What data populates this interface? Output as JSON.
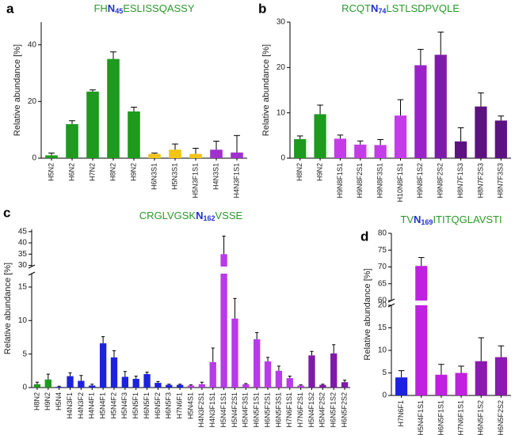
{
  "chart_data": [
    {
      "type": "bar",
      "panel": "a",
      "title": [
        "FH",
        "N",
        "45",
        "ESLISSQASSY"
      ],
      "ylabel": "Relative abundance [%]",
      "categories": [
        "H5N2",
        "H6N2",
        "H7N2",
        "H8N2",
        "H9N2",
        "H6N3S1",
        "H5N3S1",
        "H5N3F1S1",
        "H4N3S1",
        "H4N3F1S1"
      ],
      "values": [
        1,
        12,
        23.5,
        35,
        16.5,
        1.5,
        3,
        1.5,
        3,
        2
      ],
      "errors": [
        0.8,
        1.2,
        0.6,
        2.5,
        1.5,
        0.3,
        2,
        2,
        3,
        6
      ],
      "colors": [
        "#1e9a1e",
        "#1e9a1e",
        "#1e9a1e",
        "#1e9a1e",
        "#1e9a1e",
        "#f2c418",
        "#f2c418",
        "#f2c418",
        "#a030d0",
        "#a030d0"
      ],
      "ylim": [
        0,
        48
      ],
      "yticks": [
        0,
        20,
        40
      ]
    },
    {
      "type": "bar",
      "panel": "b",
      "title": [
        "RCQT",
        "N",
        "74",
        "LSTLSDPVQLE"
      ],
      "ylabel": "Relative abundance [%]",
      "categories": [
        "H8N2",
        "H9N2",
        "H9N8F1S1",
        "H9N8F2S1",
        "H9N8F3S1",
        "H10N8F1S1",
        "H9N8F1S2",
        "H9N8F2S2",
        "H8N7F1S3",
        "H8N7F2S3",
        "H8N7F3S3"
      ],
      "values": [
        4.2,
        9.7,
        4.3,
        3,
        2.9,
        9.4,
        20.5,
        22.8,
        3.7,
        11.4,
        8.3
      ],
      "errors": [
        0.7,
        2,
        0.8,
        0.8,
        1.2,
        3.5,
        3.5,
        5,
        3,
        3,
        1
      ],
      "colors": [
        "#1e9a1e",
        "#1e9a1e",
        "#c43ce8",
        "#c43ce8",
        "#c43ce8",
        "#c43ce8",
        "#9a22c8",
        "#7e1aa8",
        "#5c1280",
        "#5c1280",
        "#5c1280"
      ],
      "ylim": [
        0,
        30
      ],
      "yticks": [
        0,
        10,
        20,
        30
      ]
    },
    {
      "type": "bar",
      "panel": "c",
      "title": [
        "CRGLVGSK",
        "N",
        "162",
        "VSSE"
      ],
      "ylabel": "Relative abundance [%]",
      "categories": [
        "H8N2",
        "H9N2",
        "H5N4",
        "H4N3F1",
        "H4N3F2",
        "H4N4F1",
        "H5N4F1",
        "H5N4F2",
        "H5N4F3",
        "H5N5F1",
        "H6N5F1",
        "H6N5F2",
        "H6N5F3",
        "H7N6F1",
        "H5N4S1",
        "H4N3F2S1",
        "H4N3F1S1",
        "H5N4F1S1",
        "H5N4F2S1",
        "H5N4F3S1",
        "H6N5F1S1",
        "H6N5F2S1",
        "H6N5F3S1",
        "H7N6F1S1",
        "H7N6F2S1",
        "H5N4F1S2",
        "H5N4F2S2",
        "H6N5F1S2",
        "H6N5F2S2"
      ],
      "values": [
        0.5,
        1.2,
        0.1,
        1.7,
        1.0,
        0.3,
        6.6,
        4.5,
        1.6,
        1.3,
        2.0,
        0.7,
        0.4,
        0.4,
        0.3,
        0.5,
        3.8,
        35,
        10.3,
        0.5,
        7.2,
        3.9,
        2.5,
        1.4,
        0.3,
        4.8,
        0.4,
        5.1,
        0.8
      ],
      "errors": [
        0.3,
        0.8,
        0.1,
        0.5,
        0.8,
        0.2,
        1.0,
        1.0,
        0.8,
        0.4,
        0.3,
        0.2,
        0.1,
        0.1,
        0.1,
        0.3,
        2.1,
        8,
        3,
        0.1,
        1.0,
        0.6,
        0.7,
        0.3,
        0.1,
        0.6,
        0.1,
        1.3,
        0.3
      ],
      "colors": [
        "#1e9a1e",
        "#1e9a1e",
        "#1c22e0",
        "#1c22e0",
        "#1c22e0",
        "#1c22e0",
        "#1c22e0",
        "#1c22e0",
        "#1c22e0",
        "#1c22e0",
        "#1c22e0",
        "#1c22e0",
        "#1c22e0",
        "#1c22e0",
        "#b83ae8",
        "#b83ae8",
        "#b83ae8",
        "#b83ae8",
        "#b83ae8",
        "#b83ae8",
        "#b83ae8",
        "#b83ae8",
        "#b83ae8",
        "#b83ae8",
        "#b83ae8",
        "#7e1aa8",
        "#7e1aa8",
        "#7e1aa8",
        "#7e1aa8"
      ],
      "ylim": [
        0,
        46
      ],
      "axis_break": [
        17,
        29.5
      ],
      "yticks": [
        0,
        5,
        10,
        15,
        30,
        35,
        40,
        45
      ]
    },
    {
      "type": "bar",
      "panel": "d",
      "title": [
        "TV",
        "N",
        "169",
        "ITITQGLAVSTI"
      ],
      "ylabel": "Relative abundance [%]",
      "categories": [
        "H7N6F1",
        "H5N4F1S1",
        "H6N5F1S1",
        "H7N6F1S1",
        "H6N5F1S2",
        "H6N5F2S2"
      ],
      "values": [
        4,
        70.3,
        4.6,
        5,
        7.6,
        8.5
      ],
      "errors": [
        1.5,
        2.5,
        2.3,
        1.5,
        5.2,
        2.5
      ],
      "colors": [
        "#1c22e0",
        "#c020e0",
        "#c020e0",
        "#c020e0",
        "#8a1ab0",
        "#8a1ab0"
      ],
      "ylim": [
        0,
        80
      ],
      "axis_break": [
        20,
        60
      ],
      "yticks": [
        0,
        5,
        10,
        15,
        20,
        60,
        65,
        70,
        75,
        80
      ]
    }
  ]
}
